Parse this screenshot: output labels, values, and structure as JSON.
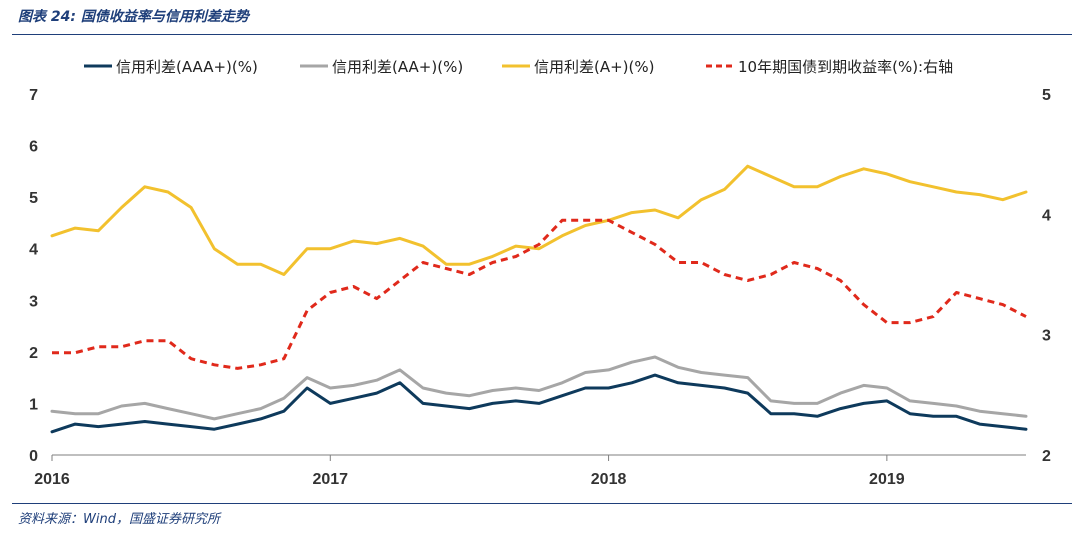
{
  "header": {
    "title": "图表 24:  国债收益率与信用利差走势"
  },
  "footer": {
    "source": "资料来源：Wind，国盛证券研究所"
  },
  "colors": {
    "aaa_plus": "#0e3a5c",
    "aa_plus": "#a6a6a6",
    "a_plus": "#f2c12e",
    "treasury_10y": "#e0291b",
    "rule": "#1f3f7a"
  },
  "chart_data": {
    "type": "line",
    "title": "",
    "x_axis": {
      "labels": [
        "2016",
        "2017",
        "2018",
        "2019"
      ],
      "range": [
        "2016-01",
        "2019-07"
      ]
    },
    "y_left": {
      "ticks": [
        "0",
        "1",
        "2",
        "3",
        "4",
        "5",
        "6",
        "7"
      ],
      "ylim": [
        0,
        7
      ]
    },
    "y_right": {
      "ticks": [
        "2",
        "3",
        "4",
        "5"
      ],
      "ylim": [
        2,
        5
      ]
    },
    "legend_position": "top",
    "grid": false,
    "x": [
      "2016-01",
      "2016-02",
      "2016-03",
      "2016-04",
      "2016-05",
      "2016-06",
      "2016-07",
      "2016-08",
      "2016-09",
      "2016-10",
      "2016-11",
      "2016-12",
      "2017-01",
      "2017-02",
      "2017-03",
      "2017-04",
      "2017-05",
      "2017-06",
      "2017-07",
      "2017-08",
      "2017-09",
      "2017-10",
      "2017-11",
      "2017-12",
      "2018-01",
      "2018-02",
      "2018-03",
      "2018-04",
      "2018-05",
      "2018-06",
      "2018-07",
      "2018-08",
      "2018-09",
      "2018-10",
      "2018-11",
      "2018-12",
      "2019-01",
      "2019-02",
      "2019-03",
      "2019-04",
      "2019-05",
      "2019-06",
      "2019-07"
    ],
    "series": [
      {
        "name": "信用利差(AAA+)(%)",
        "axis": "left",
        "style": "solid",
        "values": [
          0.45,
          0.6,
          0.55,
          0.6,
          0.65,
          0.6,
          0.55,
          0.5,
          0.6,
          0.7,
          0.85,
          1.3,
          1.0,
          1.1,
          1.2,
          1.4,
          1.0,
          0.95,
          0.9,
          1.0,
          1.05,
          1.0,
          1.15,
          1.3,
          1.3,
          1.4,
          1.55,
          1.4,
          1.35,
          1.3,
          1.2,
          0.8,
          0.8,
          0.75,
          0.9,
          1.0,
          1.05,
          0.8,
          0.75,
          0.75,
          0.6,
          0.55,
          0.5
        ]
      },
      {
        "name": "信用利差(AA+)(%)",
        "axis": "left",
        "style": "solid",
        "values": [
          0.85,
          0.8,
          0.8,
          0.95,
          1.0,
          0.9,
          0.8,
          0.7,
          0.8,
          0.9,
          1.1,
          1.5,
          1.3,
          1.35,
          1.45,
          1.65,
          1.3,
          1.2,
          1.15,
          1.25,
          1.3,
          1.25,
          1.4,
          1.6,
          1.65,
          1.8,
          1.9,
          1.7,
          1.6,
          1.55,
          1.5,
          1.05,
          1.0,
          1.0,
          1.2,
          1.35,
          1.3,
          1.05,
          1.0,
          0.95,
          0.85,
          0.8,
          0.75
        ]
      },
      {
        "name": "信用利差(A+)(%)",
        "axis": "left",
        "style": "solid",
        "values": [
          4.25,
          4.4,
          4.35,
          4.8,
          5.2,
          5.1,
          4.8,
          4.0,
          3.7,
          3.7,
          3.5,
          4.0,
          4.0,
          4.15,
          4.1,
          4.2,
          4.05,
          3.7,
          3.7,
          3.85,
          4.05,
          4.0,
          4.25,
          4.45,
          4.55,
          4.7,
          4.75,
          4.6,
          4.95,
          5.15,
          5.6,
          5.4,
          5.2,
          5.2,
          5.4,
          5.55,
          5.45,
          5.3,
          5.2,
          5.1,
          5.05,
          4.95,
          5.1
        ]
      },
      {
        "name": "10年期国债到期收益率(%):右轴",
        "axis": "right",
        "style": "dashed",
        "values": [
          2.85,
          2.85,
          2.9,
          2.9,
          2.95,
          2.95,
          2.8,
          2.75,
          2.72,
          2.75,
          2.8,
          3.2,
          3.35,
          3.4,
          3.3,
          3.45,
          3.6,
          3.55,
          3.5,
          3.6,
          3.65,
          3.75,
          3.95,
          3.95,
          3.95,
          3.85,
          3.75,
          3.6,
          3.6,
          3.5,
          3.45,
          3.5,
          3.6,
          3.55,
          3.45,
          3.25,
          3.1,
          3.1,
          3.15,
          3.35,
          3.3,
          3.25,
          3.15
        ]
      }
    ]
  }
}
